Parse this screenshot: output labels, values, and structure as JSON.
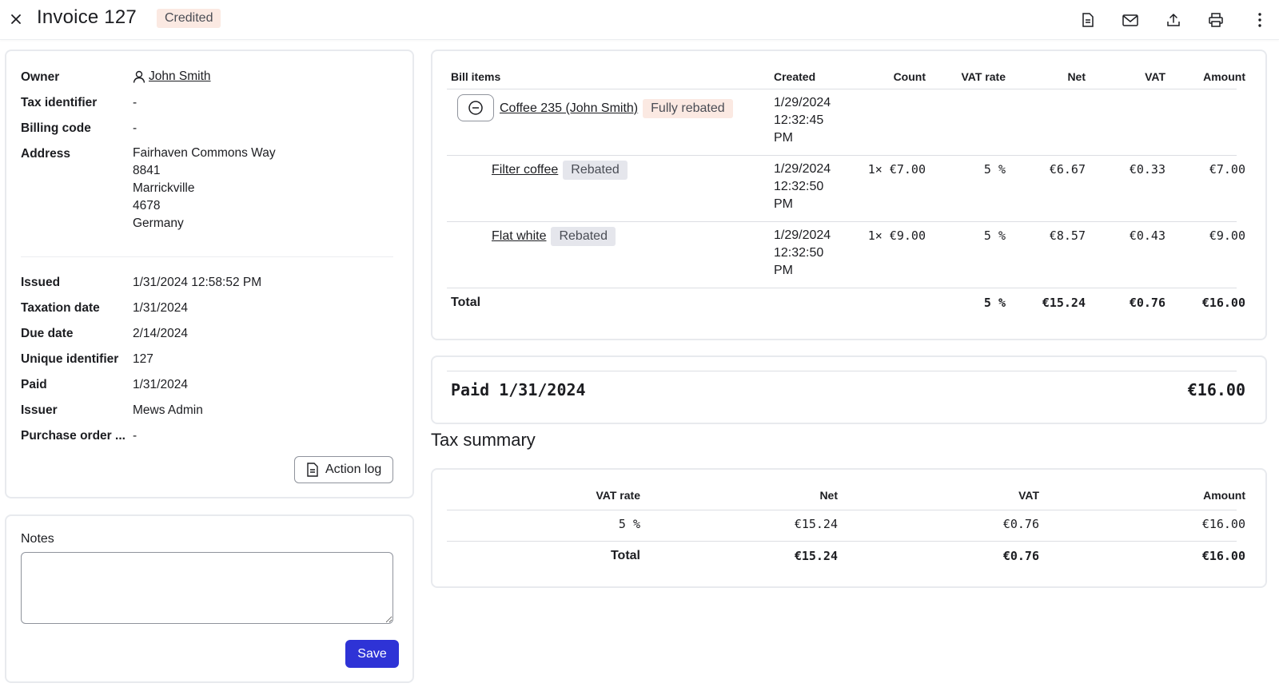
{
  "header": {
    "title": "Invoice 127",
    "status": "Credited"
  },
  "details": {
    "owner_label": "Owner",
    "owner_value": "John Smith",
    "tax_id_label": "Tax identifier",
    "tax_id_value": "-",
    "billing_code_label": "Billing code",
    "billing_code_value": "-",
    "address_label": "Address",
    "address_lines": [
      "Fairhaven Commons Way",
      "8841",
      "Marrickville",
      "4678",
      "Germany"
    ],
    "issued_label": "Issued",
    "issued_value": "1/31/2024 12:58:52 PM",
    "taxation_date_label": "Taxation date",
    "taxation_date_value": "1/31/2024",
    "due_date_label": "Due date",
    "due_date_value": "2/14/2024",
    "unique_id_label": "Unique identifier",
    "unique_id_value": "127",
    "paid_label": "Paid",
    "paid_value": "1/31/2024",
    "issuer_label": "Issuer",
    "issuer_value": "Mews Admin",
    "po_label": "Purchase order ...",
    "po_value": "-",
    "action_log_label": "Action log"
  },
  "notes": {
    "label": "Notes",
    "value": "",
    "save_label": "Save"
  },
  "bill": {
    "headers": {
      "items": "Bill items",
      "created": "Created",
      "count": "Count",
      "vat_rate": "VAT rate",
      "net": "Net",
      "vat": "VAT",
      "amount": "Amount"
    },
    "group": {
      "name": "Coffee 235 (John Smith)",
      "status": "Fully rebated",
      "created": [
        "1/29/2024",
        "12:32:45",
        "PM"
      ]
    },
    "items": [
      {
        "name": "Filter coffee",
        "status": "Rebated",
        "created": [
          "1/29/2024",
          "12:32:50",
          "PM"
        ],
        "count": "1× €7.00",
        "vat_rate": "5 %",
        "net": "€6.67",
        "vat": "€0.33",
        "amount": "€7.00"
      },
      {
        "name": "Flat white",
        "status": "Rebated",
        "created": [
          "1/29/2024",
          "12:32:50",
          "PM"
        ],
        "count": "1× €9.00",
        "vat_rate": "5 %",
        "net": "€8.57",
        "vat": "€0.43",
        "amount": "€9.00"
      }
    ],
    "total": {
      "label": "Total",
      "vat_rate": "5 %",
      "net": "€15.24",
      "vat": "€0.76",
      "amount": "€16.00"
    }
  },
  "payment": {
    "label": "Paid 1/31/2024",
    "amount": "€16.00"
  },
  "tax_summary": {
    "title": "Tax summary",
    "headers": {
      "vat_rate": "VAT rate",
      "net": "Net",
      "vat": "VAT",
      "amount": "Amount"
    },
    "row": {
      "vat_rate": "5 %",
      "net": "€15.24",
      "vat": "€0.76",
      "amount": "€16.00"
    },
    "total": {
      "label": "Total",
      "net": "€15.24",
      "vat": "€0.76",
      "amount": "€16.00"
    }
  },
  "icons": {
    "close": "close-icon",
    "pdf": "document-icon",
    "email": "mail-icon",
    "export": "upload-icon",
    "print": "printer-icon",
    "more": "more-vertical-icon"
  }
}
